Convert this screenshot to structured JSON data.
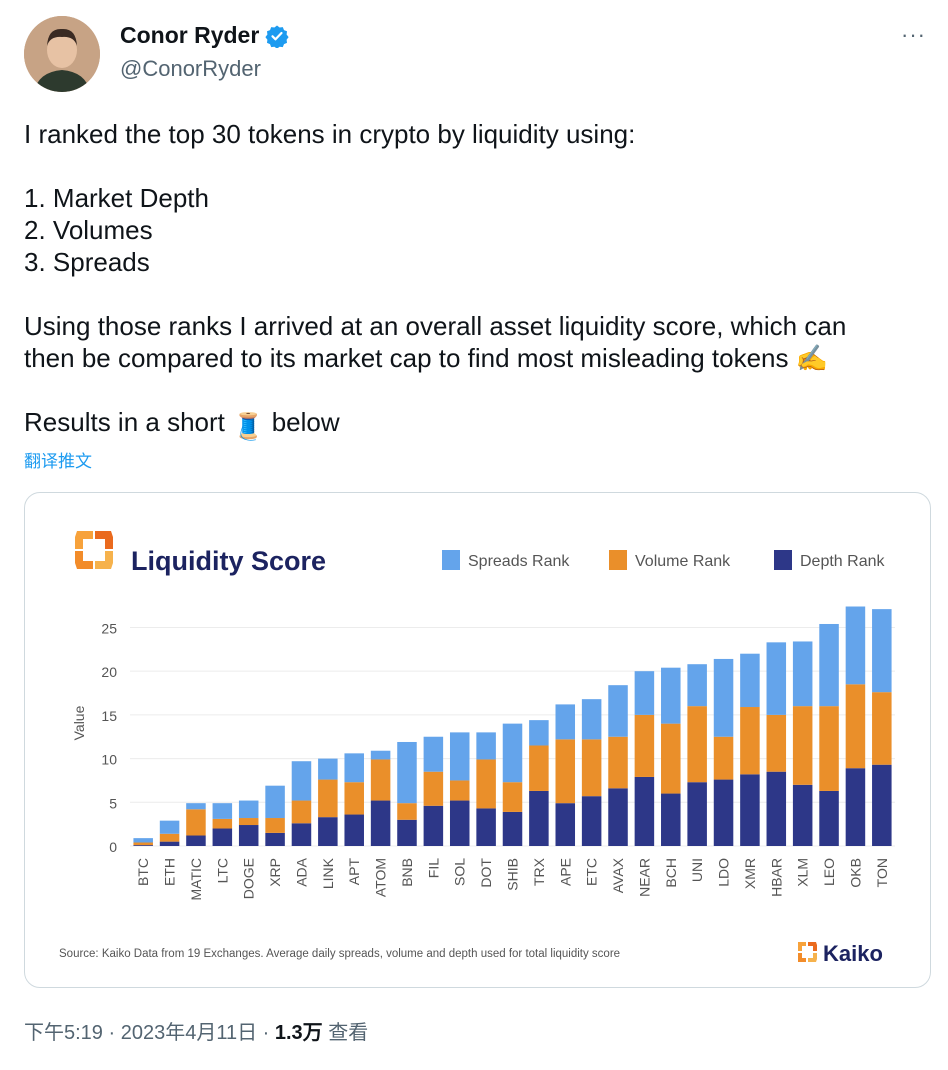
{
  "user": {
    "name": "Conor Ryder",
    "handle": "@ConorRyder"
  },
  "more_label": "···",
  "tweet": {
    "line1": "I ranked the top 30 tokens in crypto by liquidity using:",
    "list": [
      "1. Market Depth",
      "2. Volumes",
      "3. Spreads"
    ],
    "para2_line1": "Using those ranks I arrived at an overall asset liquidity score, which can",
    "para2_line2": "then be compared to its market cap to find most misleading tokens ✍️",
    "para3_before": "Results in a short ",
    "para3_emoji": "🧵",
    "para3_after": " below"
  },
  "translate_label": "翻译推文",
  "footer": {
    "time": "下午5:19 · 2023年4月11日 · ",
    "views": "1.3万",
    "views_label": " 查看"
  },
  "colors": {
    "spreads": "#64a4eb",
    "volume": "#ea8f2a",
    "depth": "#2d3788",
    "title": "#1c2360",
    "kaiko_orange": "#f08c2a"
  },
  "chart_data": {
    "type": "bar",
    "stacked": true,
    "title": "Liquidity Score",
    "ylabel": "Value",
    "ylim": [
      0,
      27
    ],
    "yticks": [
      0,
      5,
      10,
      15,
      20,
      25
    ],
    "categories": [
      "BTC",
      "ETH",
      "MATIC",
      "LTC",
      "DOGE",
      "XRP",
      "ADA",
      "LINK",
      "APT",
      "ATOM",
      "BNB",
      "FIL",
      "SOL",
      "DOT",
      "SHIB",
      "TRX",
      "APE",
      "ETC",
      "AVAX",
      "NEAR",
      "BCH",
      "UNI",
      "LDO",
      "XMR",
      "HBAR",
      "XLM",
      "LEO",
      "OKB",
      "TON"
    ],
    "series": [
      {
        "name": "Depth Rank",
        "values": [
          0.1,
          0.5,
          1.2,
          2.0,
          2.4,
          1.5,
          2.6,
          3.3,
          3.6,
          5.2,
          3.0,
          4.6,
          5.2,
          4.3,
          3.9,
          6.3,
          4.9,
          5.7,
          6.6,
          7.9,
          6.0,
          7.3,
          7.6,
          8.2,
          8.5,
          7.0,
          6.3,
          8.9,
          9.3
        ]
      },
      {
        "name": "Volume Rank",
        "values": [
          0.3,
          0.9,
          3.0,
          1.1,
          0.8,
          1.7,
          2.6,
          4.3,
          3.7,
          4.7,
          1.9,
          3.9,
          2.3,
          5.6,
          3.4,
          5.2,
          7.3,
          6.5,
          5.9,
          7.1,
          8.0,
          8.7,
          4.9,
          7.7,
          6.5,
          9.0,
          9.7,
          9.6,
          8.3
        ]
      },
      {
        "name": "Spreads Rank",
        "values": [
          0.5,
          1.5,
          0.7,
          1.8,
          2.0,
          3.7,
          4.5,
          2.4,
          3.3,
          1.0,
          7.0,
          4.0,
          5.5,
          3.1,
          6.7,
          2.9,
          4.0,
          4.6,
          5.9,
          5.0,
          6.4,
          4.8,
          8.9,
          6.1,
          8.3,
          7.4,
          9.4,
          8.9,
          9.5
        ]
      }
    ],
    "source": "Source: Kaiko Data from 19 Exchanges. Average daily spreads, volume and depth used for total liquidity score",
    "brand": "Kaiko",
    "legend_position": "top-right"
  }
}
